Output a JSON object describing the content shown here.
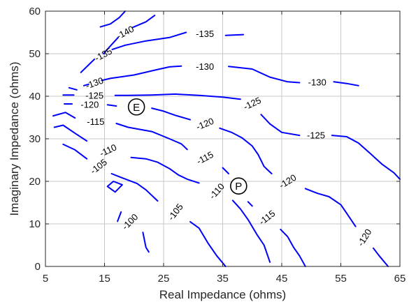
{
  "chart_data": {
    "type": "contour",
    "title": "",
    "xlabel": "Real Impedance (ohms)",
    "ylabel": "Imaginary Impedance (ohms)",
    "xlim": [
      5,
      65
    ],
    "ylim": [
      0,
      60
    ],
    "xticks": [
      5,
      15,
      25,
      35,
      45,
      55,
      65
    ],
    "yticks": [
      0,
      10,
      20,
      30,
      40,
      50,
      60
    ],
    "xtick_labels": [
      "5",
      "15",
      "25",
      "35",
      "45",
      "55",
      "65"
    ],
    "ytick_labels": [
      "0",
      "10",
      "20",
      "30",
      "40",
      "50",
      "60"
    ],
    "grid": true,
    "line_color": "#0000ff",
    "series": [
      {
        "level": "-140",
        "segments": [
          [
            [
              14.8,
              50
            ],
            [
              17.3,
              53.8
            ]
          ],
          [
            [
              19.8,
              56.2
            ],
            [
              22,
              57.5
            ],
            [
              23.5,
              59
            ]
          ]
        ]
      },
      {
        "level": "-135",
        "segments": [
          [
            [
              11,
              45.6
            ],
            [
              13.3,
              48.7
            ]
          ],
          [
            [
              16.3,
              51
            ],
            [
              18.5,
              52
            ],
            [
              22,
              53
            ],
            [
              26,
              53.8
            ],
            [
              28.8,
              55
            ]
          ],
          [
            [
              35.5,
              54.3
            ],
            [
              38.5,
              54.5
            ]
          ],
          [
            [
              14.3,
              56.3
            ],
            [
              16,
              57
            ],
            [
              17.5,
              58.5
            ],
            [
              18.5,
              60
            ]
          ]
        ]
      },
      {
        "level": "-130",
        "segments": [
          [
            [
              9,
              42
            ],
            [
              10.3,
              41.5
            ]
          ],
          [
            [
              11.5,
              42.5
            ],
            [
              12.3,
              42.8
            ]
          ],
          [
            [
              14.5,
              43.7
            ],
            [
              16,
              44.2
            ],
            [
              20,
              45
            ],
            [
              24,
              46.3
            ],
            [
              26,
              46.9
            ],
            [
              28,
              47.1
            ]
          ],
          [
            [
              36,
              47
            ],
            [
              40,
              46.4
            ],
            [
              43,
              44.5
            ],
            [
              46,
              43.4
            ],
            [
              48,
              43.2
            ]
          ],
          [
            [
              53.8,
              43.4
            ],
            [
              56,
              43
            ],
            [
              58,
              42.5
            ]
          ]
        ]
      },
      {
        "level": "-125",
        "segments": [
          [
            [
              8,
              40.3
            ],
            [
              9.8,
              40.3
            ]
          ],
          [
            [
              16.8,
              40.2
            ],
            [
              19,
              40.2
            ],
            [
              23,
              40.3
            ],
            [
              27,
              40.5
            ],
            [
              31,
              40.2
            ],
            [
              35,
              39.8
            ],
            [
              38,
              39.3
            ]
          ],
          [
            [
              41.5,
              35.7
            ],
            [
              43,
              33.5
            ],
            [
              45,
              31.5
            ],
            [
              48,
              30.8
            ]
          ],
          [
            [
              53.5,
              30.8
            ],
            [
              56,
              30.5
            ],
            [
              58,
              29
            ],
            [
              60,
              26.5
            ],
            [
              62,
              24
            ],
            [
              64,
              22
            ],
            [
              65,
              20.5
            ]
          ]
        ]
      },
      {
        "level": "-120",
        "segments": [
          [
            [
              8.2,
              38.2
            ],
            [
              9.5,
              38.2
            ]
          ],
          [
            [
              15.5,
              38
            ],
            [
              17,
              37.7
            ]
          ],
          [
            [
              23,
              37.2
            ],
            [
              25,
              36.5
            ],
            [
              27,
              35.5
            ],
            [
              29.5,
              34.5
            ]
          ],
          [
            [
              34.5,
              32.5
            ],
            [
              36.5,
              31.5
            ],
            [
              38.3,
              30.2
            ],
            [
              40,
              28.3
            ],
            [
              41,
              26.3
            ],
            [
              42,
              23.5
            ],
            [
              43.3,
              21.8
            ]
          ],
          [
            [
              49,
              18.3
            ],
            [
              51,
              17.2
            ],
            [
              53,
              16.4
            ],
            [
              55,
              14.5
            ],
            [
              56,
              12.5
            ],
            [
              57.5,
              9.4
            ]
          ],
          [
            [
              60.5,
              4.3
            ],
            [
              61.5,
              2.5
            ],
            [
              63,
              0
            ]
          ]
        ]
      },
      {
        "level": "-115",
        "segments": [
          [
            [
              6.3,
              35.4
            ],
            [
              8.4,
              36.2
            ],
            [
              10,
              34.9
            ]
          ],
          [
            [
              17,
              33.6
            ],
            [
              19,
              32.7
            ],
            [
              23,
              31.7
            ],
            [
              26,
              30
            ],
            [
              28,
              28.8
            ],
            [
              29,
              27.5
            ]
          ],
          [
            [
              35,
              23.2
            ],
            [
              36,
              21.8
            ]
          ],
          [
            [
              39.3,
              15.2
            ],
            [
              40,
              14.2
            ]
          ],
          [
            [
              44.8,
              8.7
            ],
            [
              46,
              7
            ],
            [
              47,
              4.5
            ],
            [
              48,
              2.5
            ],
            [
              49,
              0
            ]
          ]
        ]
      },
      {
        "level": "-110",
        "segments": [
          [
            [
              6.5,
              32.7
            ],
            [
              8,
              33.2
            ],
            [
              10,
              31.3
            ],
            [
              12,
              29.5
            ]
          ],
          [
            [
              19.5,
              25.6
            ],
            [
              22,
              25.3
            ],
            [
              24,
              24.5
            ],
            [
              26,
              23
            ],
            [
              27.5,
              21.5
            ],
            [
              29,
              20.5
            ],
            [
              31,
              19.6
            ]
          ],
          [
            [
              36.7,
              15.5
            ],
            [
              38,
              13.5
            ],
            [
              39.3,
              11
            ],
            [
              40.8,
              7.5
            ],
            [
              42,
              5
            ],
            [
              43,
              1
            ]
          ]
        ]
      },
      {
        "level": "-105",
        "segments": [
          [
            [
              8,
              28.7
            ],
            [
              10,
              27.4
            ],
            [
              12,
              25.3
            ]
          ],
          [
            [
              16.2,
              21.8
            ],
            [
              18,
              20.8
            ],
            [
              20.5,
              19.5
            ],
            [
              22,
              18
            ],
            [
              24,
              15.4
            ]
          ],
          [
            [
              29.5,
              10.5
            ],
            [
              31,
              9
            ],
            [
              32.5,
              5.5
            ],
            [
              33,
              4.5
            ],
            [
              34,
              2.5
            ],
            [
              35.5,
              0
            ]
          ]
        ]
      },
      {
        "level": "-100",
        "segments": [
          [
            [
              17.2,
              10.6
            ],
            [
              17.8,
              12.8
            ]
          ],
          [
            [
              21.5,
              8
            ],
            [
              22,
              4.5
            ],
            [
              22.5,
              3.4
            ]
          ],
          [
            [
              15.5,
              18.8
            ],
            [
              16.5,
              20
            ],
            [
              18,
              19.2
            ],
            [
              16.8,
              17.5
            ],
            [
              15.5,
              18.8
            ]
          ]
        ]
      }
    ],
    "contour_labels": [
      {
        "text": "-140",
        "x": 18.5,
        "y": 55,
        "angle": -28
      },
      {
        "text": "-135",
        "x": 32,
        "y": 54.7,
        "angle": 0
      },
      {
        "text": "-135",
        "x": 14.8,
        "y": 49.8,
        "angle": -28
      },
      {
        "text": "-130",
        "x": 13.3,
        "y": 43.1,
        "angle": -20
      },
      {
        "text": "-130",
        "x": 32,
        "y": 47,
        "angle": 0
      },
      {
        "text": "-130",
        "x": 51,
        "y": 43.3,
        "angle": 0
      },
      {
        "text": "-125",
        "x": 13.3,
        "y": 40.2,
        "angle": 0
      },
      {
        "text": "-125",
        "x": 40,
        "y": 38.3,
        "angle": -25
      },
      {
        "text": "-125",
        "x": 50.8,
        "y": 30.8,
        "angle": 0
      },
      {
        "text": "-120",
        "x": 12.5,
        "y": 38,
        "angle": 0
      },
      {
        "text": "-120",
        "x": 32,
        "y": 33.5,
        "angle": -22
      },
      {
        "text": "-120",
        "x": 46,
        "y": 20,
        "angle": -32
      },
      {
        "text": "-120",
        "x": 59,
        "y": 6.8,
        "angle": -58
      },
      {
        "text": "-115",
        "x": 13.5,
        "y": 34,
        "angle": 0
      },
      {
        "text": "-115",
        "x": 32,
        "y": 25.5,
        "angle": -28
      },
      {
        "text": "-115",
        "x": 42.5,
        "y": 11.5,
        "angle": -38
      },
      {
        "text": "-110",
        "x": 15.6,
        "y": 27.3,
        "angle": -25
      },
      {
        "text": "-110",
        "x": 34,
        "y": 17.7,
        "angle": -48
      },
      {
        "text": "-105",
        "x": 14,
        "y": 23.5,
        "angle": -38
      },
      {
        "text": "-105",
        "x": 27,
        "y": 12.8,
        "angle": -52
      },
      {
        "text": "-100",
        "x": 19.3,
        "y": 10.5,
        "angle": -45
      }
    ],
    "markers": [
      {
        "label": "E",
        "x": 20.4,
        "y": 37.5
      },
      {
        "label": "P",
        "x": 37.7,
        "y": 18.9
      }
    ]
  }
}
